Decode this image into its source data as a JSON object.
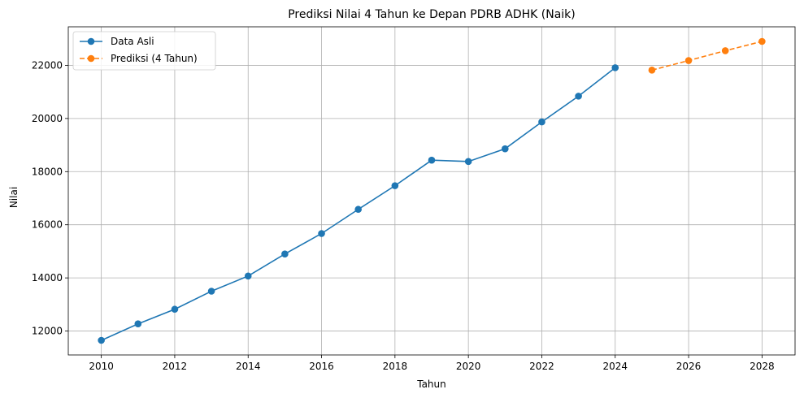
{
  "chart_data": {
    "type": "line",
    "title": "Prediksi Nilai 4 Tahun ke Depan PDRB ADHK (Naik)",
    "xlabel": "Tahun",
    "ylabel": "Nilai",
    "xlim": [
      2009.1,
      2028.9
    ],
    "ylim": [
      11100,
      23450
    ],
    "xticks": [
      2010,
      2012,
      2014,
      2016,
      2018,
      2020,
      2022,
      2024,
      2026,
      2028
    ],
    "yticks": [
      12000,
      14000,
      16000,
      18000,
      20000,
      22000
    ],
    "grid": true,
    "legend_position": "top-left",
    "series": [
      {
        "name": "Data Asli",
        "color": "#1f77b4",
        "style": "solid",
        "x": [
          2010,
          2011,
          2012,
          2013,
          2014,
          2015,
          2016,
          2017,
          2018,
          2019,
          2020,
          2021,
          2022,
          2023,
          2024
        ],
        "values": [
          11650,
          12270,
          12820,
          13500,
          14070,
          14900,
          15670,
          16580,
          17470,
          18430,
          18380,
          18860,
          19870,
          20840,
          21910
        ]
      },
      {
        "name": "Prediksi (4 Tahun)",
        "color": "#ff7f0e",
        "style": "dashed",
        "x": [
          2025,
          2026,
          2027,
          2028
        ],
        "values": [
          21820,
          22180,
          22550,
          22900
        ]
      }
    ]
  }
}
